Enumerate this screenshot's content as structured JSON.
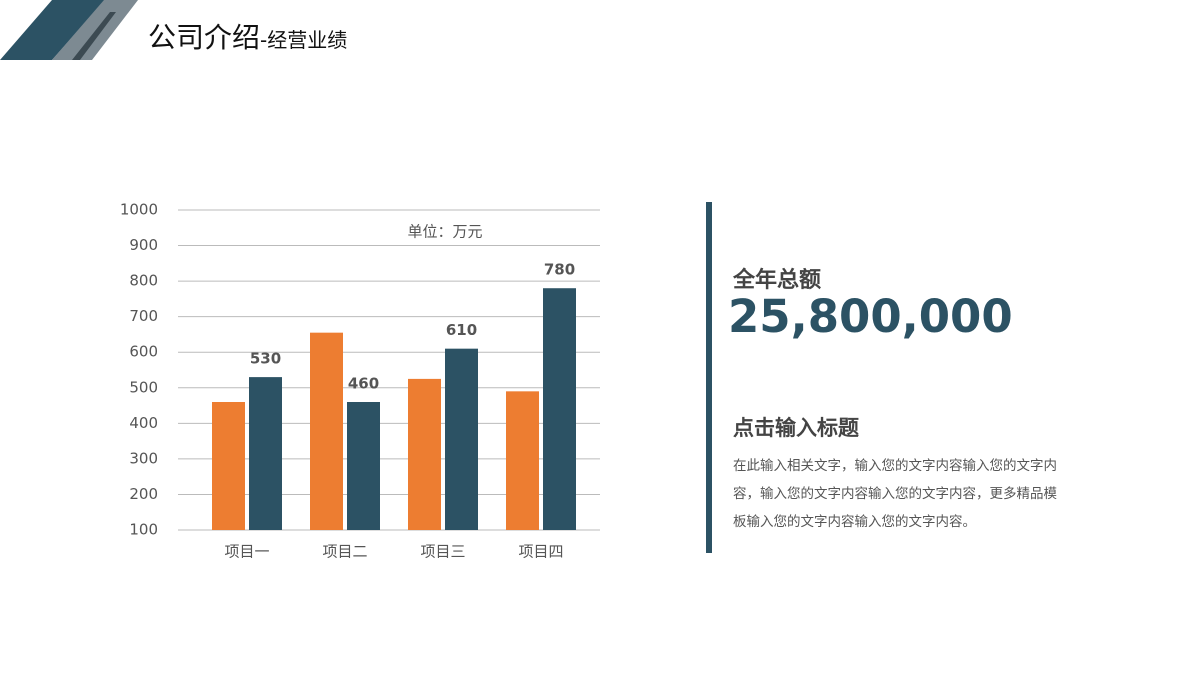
{
  "header": {
    "title": "公司介绍",
    "subtitle": "-经营业绩"
  },
  "chart_data": {
    "type": "bar",
    "annotation": "单位：万元",
    "categories": [
      "项目一",
      "项目二",
      "项目三",
      "项目四"
    ],
    "series": [
      {
        "color": "#ed7d31",
        "values": [
          460,
          655,
          525,
          490
        ],
        "show_values": false
      },
      {
        "color": "#2c5264",
        "values": [
          530,
          460,
          610,
          780
        ],
        "show_values": true
      }
    ],
    "ylim": [
      100,
      1000
    ],
    "yticks": [
      100,
      200,
      300,
      400,
      500,
      600,
      700,
      800,
      900,
      1000
    ],
    "grid": true
  },
  "summary": {
    "label": "全年总额",
    "total": "25,800,000",
    "heading": "点击输入标题",
    "body": "在此输入相关文字，输入您的文字内容输入您的文字内容，输入您的文字内容输入您的文字内容，更多精品模板输入您的文字内容输入您的文字内容。"
  }
}
